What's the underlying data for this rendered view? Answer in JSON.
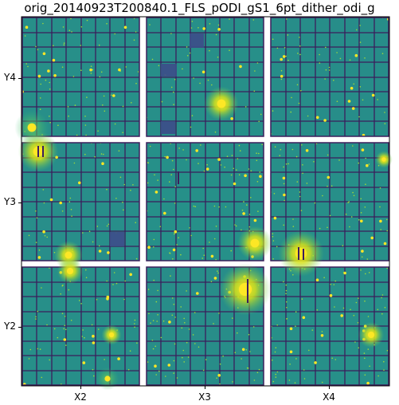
{
  "figure": {
    "title": "orig_20140923T200840.1_FLS_pODI_gS1_6pt_dither_odi_g",
    "x_tick_labels": [
      "X2",
      "X3",
      "X4"
    ],
    "y_tick_labels": [
      "Y4",
      "Y3",
      "Y2"
    ]
  },
  "palette": {
    "background": "#2a8a8a",
    "grid_line": "#3b1e5c",
    "star_bright": "#fde725",
    "star_mid": "#9fda3a",
    "gap": "#ffffff",
    "dark_block": "#3d4d8a"
  }
}
